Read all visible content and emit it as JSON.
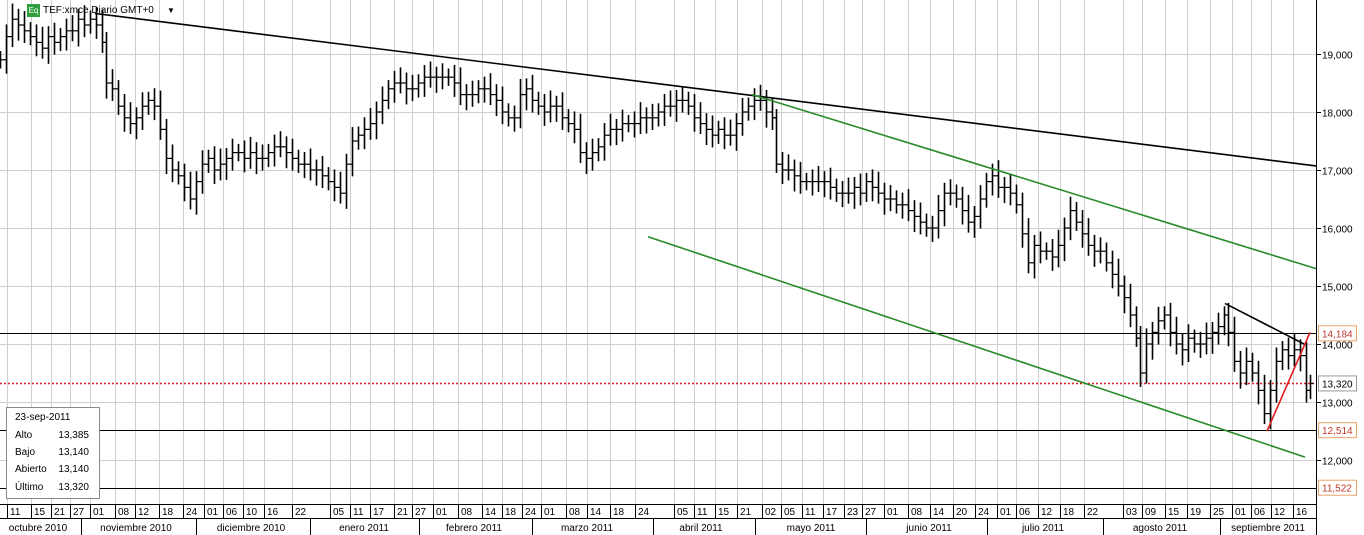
{
  "header": {
    "badge": "Eq",
    "title": "TEF:xmce Diario GMT+0",
    "caret": "▼"
  },
  "info_box": {
    "date": "23-sep-2011",
    "rows": [
      {
        "label": "Alto",
        "value": "13,385"
      },
      {
        "label": "Bajo",
        "value": "13,140"
      },
      {
        "label": "Abierto",
        "value": "13,140"
      },
      {
        "label": "Último",
        "value": "13,320"
      }
    ]
  },
  "colors": {
    "price": "#000000",
    "grid": "#cfcfcf",
    "channel": "#2a8a2a",
    "trend": "#000000",
    "red_line": "#e21b1b",
    "dotted": "#e21b1b",
    "label_border": "#e8a46a",
    "label_text": "#c0392b"
  },
  "chart_data": {
    "type": "ohlc",
    "title": "TEF:xmce Diario GMT+0",
    "ylim": [
      11.3,
      20.0
    ],
    "y_ticks": [
      {
        "value": 12.0,
        "label": "12,000"
      },
      {
        "value": 13.0,
        "label": "13,000"
      },
      {
        "value": 14.0,
        "label": "14,000"
      },
      {
        "value": 15.0,
        "label": "15,000"
      },
      {
        "value": 16.0,
        "label": "16,000"
      },
      {
        "value": 17.0,
        "label": "17,000"
      },
      {
        "value": 18.0,
        "label": "18,000"
      },
      {
        "value": 19.0,
        "label": "19,000"
      }
    ],
    "level_labels": [
      {
        "value": 14.184,
        "label": "14,184",
        "style": "boxed",
        "line": "solid"
      },
      {
        "value": 13.32,
        "label": "13,320",
        "style": "boxed-gray",
        "line": "dotted"
      },
      {
        "value": 12.514,
        "label": "12,514",
        "style": "boxed",
        "line": "solid"
      },
      {
        "value": 11.522,
        "label": "11,522",
        "style": "boxed",
        "line": "solid"
      }
    ],
    "x_days": [
      "11",
      "15",
      "21",
      "27",
      "01",
      "08",
      "12",
      "18",
      "24",
      "01",
      "06",
      "10",
      "16",
      "22",
      "05",
      "11",
      "17",
      "21",
      "27",
      "01",
      "08",
      "14",
      "18",
      "24",
      "01",
      "08",
      "14",
      "18",
      "24",
      "05",
      "11",
      "15",
      "21",
      "02",
      "05",
      "11",
      "17",
      "23",
      "27",
      "01",
      "08",
      "14",
      "20",
      "24",
      "01",
      "06",
      "12",
      "18",
      "22",
      "03",
      "09",
      "15",
      "19",
      "25",
      "01",
      "06",
      "12",
      "16"
    ],
    "x_months": [
      "octubre 2010",
      "noviembre 2010",
      "diciembre 2010",
      "enero 2011",
      "febrero 2011",
      "marzo 2011",
      "abril 2011",
      "mayo 2011",
      "junio 2011",
      "julio 2011",
      "agosto 2011",
      "septiembre 2011"
    ],
    "close_path": [
      [
        0,
        18.9
      ],
      [
        6,
        19.3
      ],
      [
        12,
        19.6
      ],
      [
        18,
        19.5
      ],
      [
        24,
        19.4
      ],
      [
        30,
        19.3
      ],
      [
        36,
        19.2
      ],
      [
        42,
        19.1
      ],
      [
        48,
        19.3
      ],
      [
        54,
        19.2
      ],
      [
        60,
        19.3
      ],
      [
        66,
        19.4
      ],
      [
        72,
        19.4
      ],
      [
        78,
        19.6
      ],
      [
        84,
        19.5
      ],
      [
        90,
        19.6
      ],
      [
        96,
        19.5
      ],
      [
        102,
        19.2
      ],
      [
        106,
        18.5
      ],
      [
        112,
        18.4
      ],
      [
        118,
        18.1
      ],
      [
        124,
        17.9
      ],
      [
        130,
        17.8
      ],
      [
        136,
        17.9
      ],
      [
        142,
        18.1
      ],
      [
        148,
        18.2
      ],
      [
        154,
        18.1
      ],
      [
        160,
        17.7
      ],
      [
        166,
        17.2
      ],
      [
        172,
        17.0
      ],
      [
        178,
        16.9
      ],
      [
        184,
        16.7
      ],
      [
        190,
        16.5
      ],
      [
        196,
        16.8
      ],
      [
        202,
        17.1
      ],
      [
        208,
        17.2
      ],
      [
        214,
        17.0
      ],
      [
        220,
        17.1
      ],
      [
        226,
        17.2
      ],
      [
        232,
        17.3
      ],
      [
        238,
        17.3
      ],
      [
        244,
        17.2
      ],
      [
        250,
        17.3
      ],
      [
        256,
        17.2
      ],
      [
        262,
        17.2
      ],
      [
        268,
        17.3
      ],
      [
        274,
        17.4
      ],
      [
        280,
        17.4
      ],
      [
        286,
        17.3
      ],
      [
        292,
        17.2
      ],
      [
        298,
        17.1
      ],
      [
        304,
        17.1
      ],
      [
        310,
        17.0
      ],
      [
        316,
        17.0
      ],
      [
        322,
        16.9
      ],
      [
        328,
        16.8
      ],
      [
        334,
        16.7
      ],
      [
        340,
        16.6
      ],
      [
        346,
        17.1
      ],
      [
        352,
        17.5
      ],
      [
        358,
        17.6
      ],
      [
        364,
        17.7
      ],
      [
        370,
        17.8
      ],
      [
        376,
        18.0
      ],
      [
        382,
        18.2
      ],
      [
        388,
        18.4
      ],
      [
        394,
        18.5
      ],
      [
        400,
        18.5
      ],
      [
        406,
        18.4
      ],
      [
        412,
        18.4
      ],
      [
        418,
        18.5
      ],
      [
        424,
        18.6
      ],
      [
        430,
        18.6
      ],
      [
        436,
        18.6
      ],
      [
        442,
        18.6
      ],
      [
        448,
        18.6
      ],
      [
        454,
        18.5
      ],
      [
        460,
        18.3
      ],
      [
        466,
        18.3
      ],
      [
        472,
        18.3
      ],
      [
        478,
        18.4
      ],
      [
        484,
        18.4
      ],
      [
        490,
        18.3
      ],
      [
        496,
        18.2
      ],
      [
        502,
        18.0
      ],
      [
        508,
        17.9
      ],
      [
        514,
        17.9
      ],
      [
        520,
        18.3
      ],
      [
        526,
        18.4
      ],
      [
        532,
        18.2
      ],
      [
        538,
        18.1
      ],
      [
        544,
        18.0
      ],
      [
        550,
        18.1
      ],
      [
        556,
        18.1
      ],
      [
        562,
        17.9
      ],
      [
        568,
        17.8
      ],
      [
        574,
        17.7
      ],
      [
        580,
        17.3
      ],
      [
        586,
        17.2
      ],
      [
        592,
        17.3
      ],
      [
        598,
        17.4
      ],
      [
        604,
        17.6
      ],
      [
        610,
        17.7
      ],
      [
        616,
        17.7
      ],
      [
        622,
        17.8
      ],
      [
        628,
        17.8
      ],
      [
        634,
        17.8
      ],
      [
        640,
        17.9
      ],
      [
        646,
        17.9
      ],
      [
        652,
        17.9
      ],
      [
        658,
        18.0
      ],
      [
        664,
        18.1
      ],
      [
        670,
        18.1
      ],
      [
        676,
        18.2
      ],
      [
        682,
        18.2
      ],
      [
        688,
        18.1
      ],
      [
        694,
        17.9
      ],
      [
        700,
        17.8
      ],
      [
        706,
        17.7
      ],
      [
        712,
        17.6
      ],
      [
        718,
        17.7
      ],
      [
        724,
        17.6
      ],
      [
        730,
        17.6
      ],
      [
        736,
        17.8
      ],
      [
        742,
        18.0
      ],
      [
        748,
        18.1
      ],
      [
        754,
        18.2
      ],
      [
        760,
        18.2
      ],
      [
        766,
        18.0
      ],
      [
        772,
        17.9
      ],
      [
        776,
        17.1
      ],
      [
        782,
        17.0
      ],
      [
        788,
        17.0
      ],
      [
        794,
        16.9
      ],
      [
        800,
        16.8
      ],
      [
        806,
        16.8
      ],
      [
        812,
        16.8
      ],
      [
        818,
        16.8
      ],
      [
        824,
        16.8
      ],
      [
        830,
        16.7
      ],
      [
        836,
        16.6
      ],
      [
        842,
        16.6
      ],
      [
        848,
        16.6
      ],
      [
        854,
        16.7
      ],
      [
        860,
        16.6
      ],
      [
        866,
        16.8
      ],
      [
        872,
        16.7
      ],
      [
        878,
        16.6
      ],
      [
        884,
        16.5
      ],
      [
        890,
        16.5
      ],
      [
        896,
        16.4
      ],
      [
        902,
        16.4
      ],
      [
        908,
        16.3
      ],
      [
        914,
        16.2
      ],
      [
        920,
        16.1
      ],
      [
        926,
        16.0
      ],
      [
        932,
        16.0
      ],
      [
        938,
        16.3
      ],
      [
        944,
        16.6
      ],
      [
        950,
        16.6
      ],
      [
        956,
        16.5
      ],
      [
        962,
        16.3
      ],
      [
        968,
        16.1
      ],
      [
        974,
        16.2
      ],
      [
        980,
        16.5
      ],
      [
        986,
        16.8
      ],
      [
        992,
        16.9
      ],
      [
        998,
        16.7
      ],
      [
        1004,
        16.7
      ],
      [
        1010,
        16.6
      ],
      [
        1016,
        16.4
      ],
      [
        1022,
        15.9
      ],
      [
        1028,
        15.4
      ],
      [
        1034,
        15.7
      ],
      [
        1040,
        15.6
      ],
      [
        1046,
        15.6
      ],
      [
        1052,
        15.5
      ],
      [
        1058,
        15.7
      ],
      [
        1064,
        16.0
      ],
      [
        1070,
        16.3
      ],
      [
        1076,
        16.1
      ],
      [
        1082,
        15.9
      ],
      [
        1088,
        15.7
      ],
      [
        1094,
        15.6
      ],
      [
        1100,
        15.6
      ],
      [
        1106,
        15.4
      ],
      [
        1112,
        15.2
      ],
      [
        1118,
        15.0
      ],
      [
        1124,
        14.8
      ],
      [
        1130,
        14.5
      ],
      [
        1136,
        14.1
      ],
      [
        1140,
        13.5
      ],
      [
        1146,
        14.0
      ],
      [
        1152,
        14.2
      ],
      [
        1158,
        14.4
      ],
      [
        1164,
        14.5
      ],
      [
        1170,
        14.2
      ],
      [
        1176,
        14.0
      ],
      [
        1182,
        13.9
      ],
      [
        1188,
        14.1
      ],
      [
        1194,
        14.0
      ],
      [
        1200,
        14.0
      ],
      [
        1206,
        14.1
      ],
      [
        1212,
        14.2
      ],
      [
        1218,
        14.3
      ],
      [
        1224,
        14.5
      ],
      [
        1228,
        14.2
      ],
      [
        1234,
        13.7
      ],
      [
        1240,
        13.5
      ],
      [
        1246,
        13.7
      ],
      [
        1252,
        13.5
      ],
      [
        1258,
        13.2
      ],
      [
        1264,
        12.8
      ],
      [
        1270,
        13.2
      ],
      [
        1276,
        13.7
      ],
      [
        1282,
        13.9
      ],
      [
        1288,
        13.8
      ],
      [
        1294,
        13.9
      ],
      [
        1300,
        13.8
      ],
      [
        1306,
        13.2
      ],
      [
        1310,
        13.32
      ]
    ],
    "trendlines": [
      {
        "color": "trend",
        "points": [
          [
            95,
            19.7
          ],
          [
            1316,
            17.07
          ]
        ]
      },
      {
        "color": "trend",
        "points": [
          [
            1225,
            14.7
          ],
          [
            1304,
            14.0
          ]
        ]
      },
      {
        "color": "channel",
        "points": [
          [
            752,
            18.3
          ],
          [
            1316,
            15.3
          ]
        ]
      },
      {
        "color": "channel",
        "points": [
          [
            648,
            15.85
          ],
          [
            1305,
            12.05
          ]
        ]
      },
      {
        "color": "red_line",
        "points": [
          [
            1267,
            12.5
          ],
          [
            1310,
            14.2
          ]
        ]
      }
    ]
  }
}
